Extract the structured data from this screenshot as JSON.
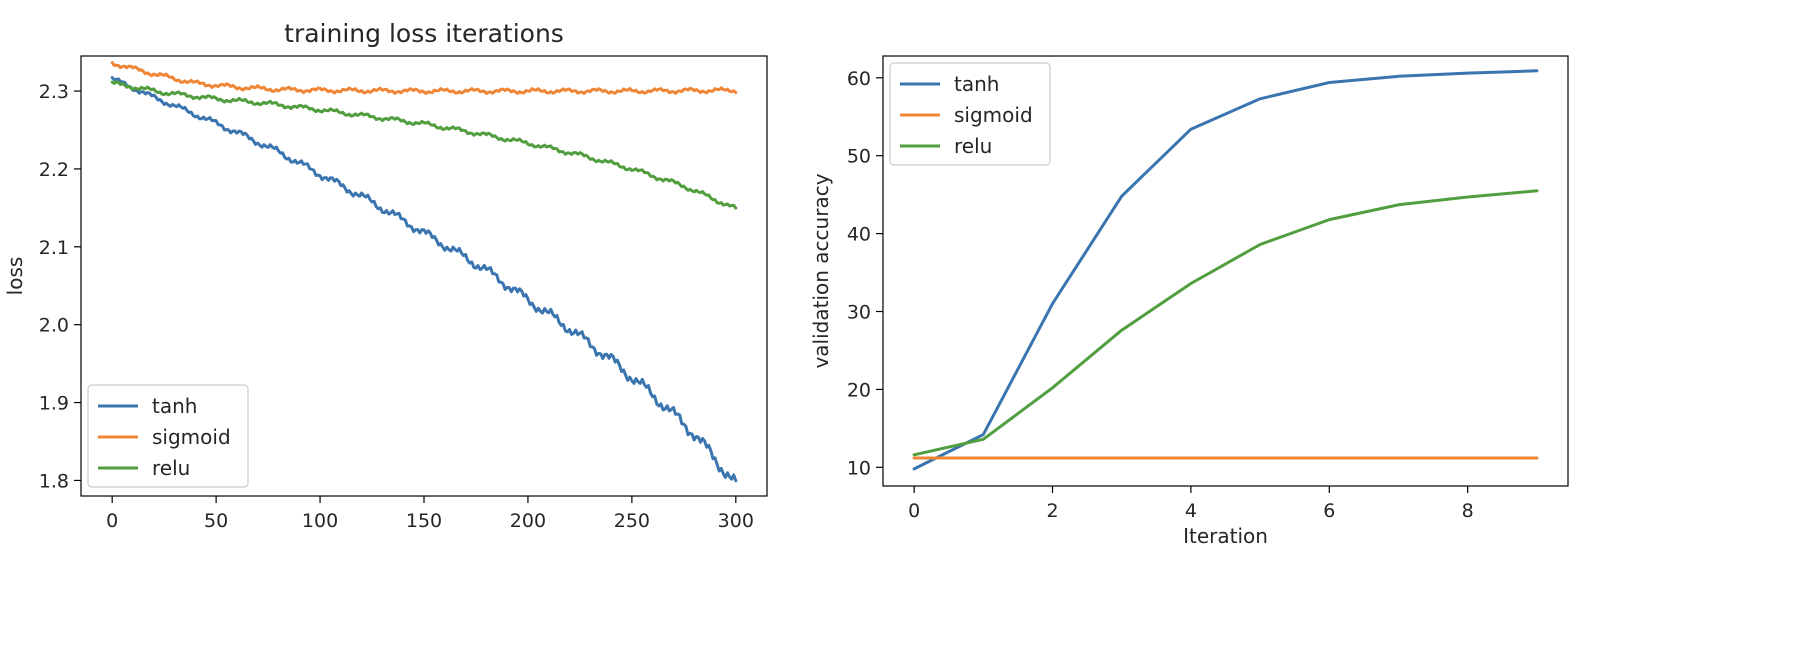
{
  "colors": {
    "tanh": "#3b75af",
    "sigmoid": "#ef8636",
    "relu": "#519e3e"
  },
  "chart_data": [
    {
      "type": "line",
      "title": "training loss iterations",
      "xlabel": "",
      "ylabel": "loss",
      "xlim": [
        -15,
        315
      ],
      "ylim": [
        1.78,
        2.345
      ],
      "xticks": [
        0,
        50,
        100,
        150,
        200,
        250,
        300
      ],
      "yticks": [
        1.8,
        1.9,
        2.0,
        2.1,
        2.2,
        2.3
      ],
      "ytick_labels": [
        "1.8",
        "1.9",
        "2.0",
        "2.1",
        "2.2",
        "2.3"
      ],
      "grid": false,
      "legend_position": "lower-left",
      "series": [
        {
          "name": "tanh",
          "color": "#3b75af",
          "x": [
            0,
            20,
            40,
            60,
            80,
            100,
            120,
            140,
            160,
            180,
            200,
            220,
            240,
            260,
            280,
            300
          ],
          "y": [
            2.316,
            2.292,
            2.27,
            2.247,
            2.222,
            2.193,
            2.165,
            2.134,
            2.102,
            2.07,
            2.032,
            1.995,
            1.955,
            1.91,
            1.86,
            1.795
          ]
        },
        {
          "name": "sigmoid",
          "color": "#ef8636",
          "x": [
            0,
            20,
            40,
            60,
            80,
            100,
            150,
            200,
            250,
            300
          ],
          "y": [
            2.336,
            2.322,
            2.31,
            2.305,
            2.302,
            2.301,
            2.3,
            2.3,
            2.3,
            2.301
          ]
        },
        {
          "name": "relu",
          "color": "#519e3e",
          "x": [
            0,
            25,
            50,
            75,
            100,
            125,
            150,
            175,
            200,
            225,
            250,
            275,
            300
          ],
          "y": [
            2.31,
            2.298,
            2.29,
            2.284,
            2.276,
            2.267,
            2.258,
            2.246,
            2.233,
            2.218,
            2.2,
            2.178,
            2.149
          ]
        }
      ]
    },
    {
      "type": "line",
      "title": "",
      "xlabel": "Iteration",
      "ylabel": "validation accuracy",
      "xlim": [
        -0.45,
        9.45
      ],
      "ylim": [
        7.6,
        62.8
      ],
      "xticks": [
        0,
        2,
        4,
        6,
        8
      ],
      "yticks": [
        10,
        20,
        30,
        40,
        50,
        60
      ],
      "grid": false,
      "legend_position": "upper-left",
      "series": [
        {
          "name": "tanh",
          "color": "#3b75af",
          "x": [
            0,
            1,
            2,
            3,
            4,
            5,
            6,
            7,
            8,
            9
          ],
          "y": [
            9.8,
            14.2,
            31.0,
            44.8,
            53.4,
            57.3,
            59.4,
            60.2,
            60.6,
            60.9
          ]
        },
        {
          "name": "sigmoid",
          "color": "#ef8636",
          "x": [
            0,
            1,
            2,
            3,
            4,
            5,
            6,
            7,
            8,
            9
          ],
          "y": [
            11.2,
            11.2,
            11.2,
            11.2,
            11.2,
            11.2,
            11.2,
            11.2,
            11.2,
            11.2
          ]
        },
        {
          "name": "relu",
          "color": "#519e3e",
          "x": [
            0,
            1,
            2,
            3,
            4,
            5,
            6,
            7,
            8,
            9
          ],
          "y": [
            11.6,
            13.6,
            20.2,
            27.6,
            33.6,
            38.6,
            41.8,
            43.7,
            44.7,
            45.5
          ]
        }
      ]
    }
  ]
}
